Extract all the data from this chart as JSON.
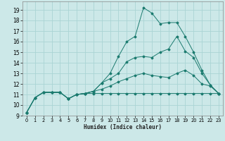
{
  "title": "",
  "xlabel": "Humidex (Indice chaleur)",
  "bg_color": "#cce8e8",
  "grid_color": "#aad4d4",
  "line_color": "#1a7a6e",
  "xlim": [
    -0.5,
    23.5
  ],
  "ylim": [
    9,
    19.8
  ],
  "xticks": [
    0,
    1,
    2,
    3,
    4,
    5,
    6,
    7,
    8,
    9,
    10,
    11,
    12,
    13,
    14,
    15,
    16,
    17,
    18,
    19,
    20,
    21,
    22,
    23
  ],
  "yticks": [
    9,
    10,
    11,
    12,
    13,
    14,
    15,
    16,
    17,
    18,
    19
  ],
  "series": [
    [
      9.3,
      10.7,
      11.2,
      11.2,
      11.2,
      10.6,
      11.0,
      11.1,
      11.1,
      11.1,
      11.1,
      11.1,
      11.1,
      11.1,
      11.1,
      11.1,
      11.1,
      11.1,
      11.1,
      11.1,
      11.1,
      11.1,
      11.1,
      11.1
    ],
    [
      9.3,
      10.7,
      11.2,
      11.2,
      11.2,
      10.6,
      11.0,
      11.1,
      11.3,
      11.5,
      11.8,
      12.2,
      12.5,
      12.8,
      13.0,
      12.8,
      12.7,
      12.6,
      13.0,
      13.3,
      12.8,
      12.0,
      11.8,
      11.1
    ],
    [
      9.3,
      10.7,
      11.2,
      11.2,
      11.2,
      10.6,
      11.0,
      11.1,
      11.3,
      12.1,
      12.5,
      13.0,
      14.1,
      14.5,
      14.6,
      14.5,
      15.0,
      15.3,
      16.5,
      15.1,
      14.5,
      13.0,
      11.9,
      11.1
    ],
    [
      9.3,
      10.7,
      11.2,
      11.2,
      11.2,
      10.6,
      11.0,
      11.1,
      11.3,
      12.1,
      13.0,
      14.6,
      16.0,
      16.5,
      19.2,
      18.7,
      17.7,
      17.8,
      17.8,
      16.5,
      15.0,
      13.3,
      11.9,
      11.1
    ]
  ]
}
